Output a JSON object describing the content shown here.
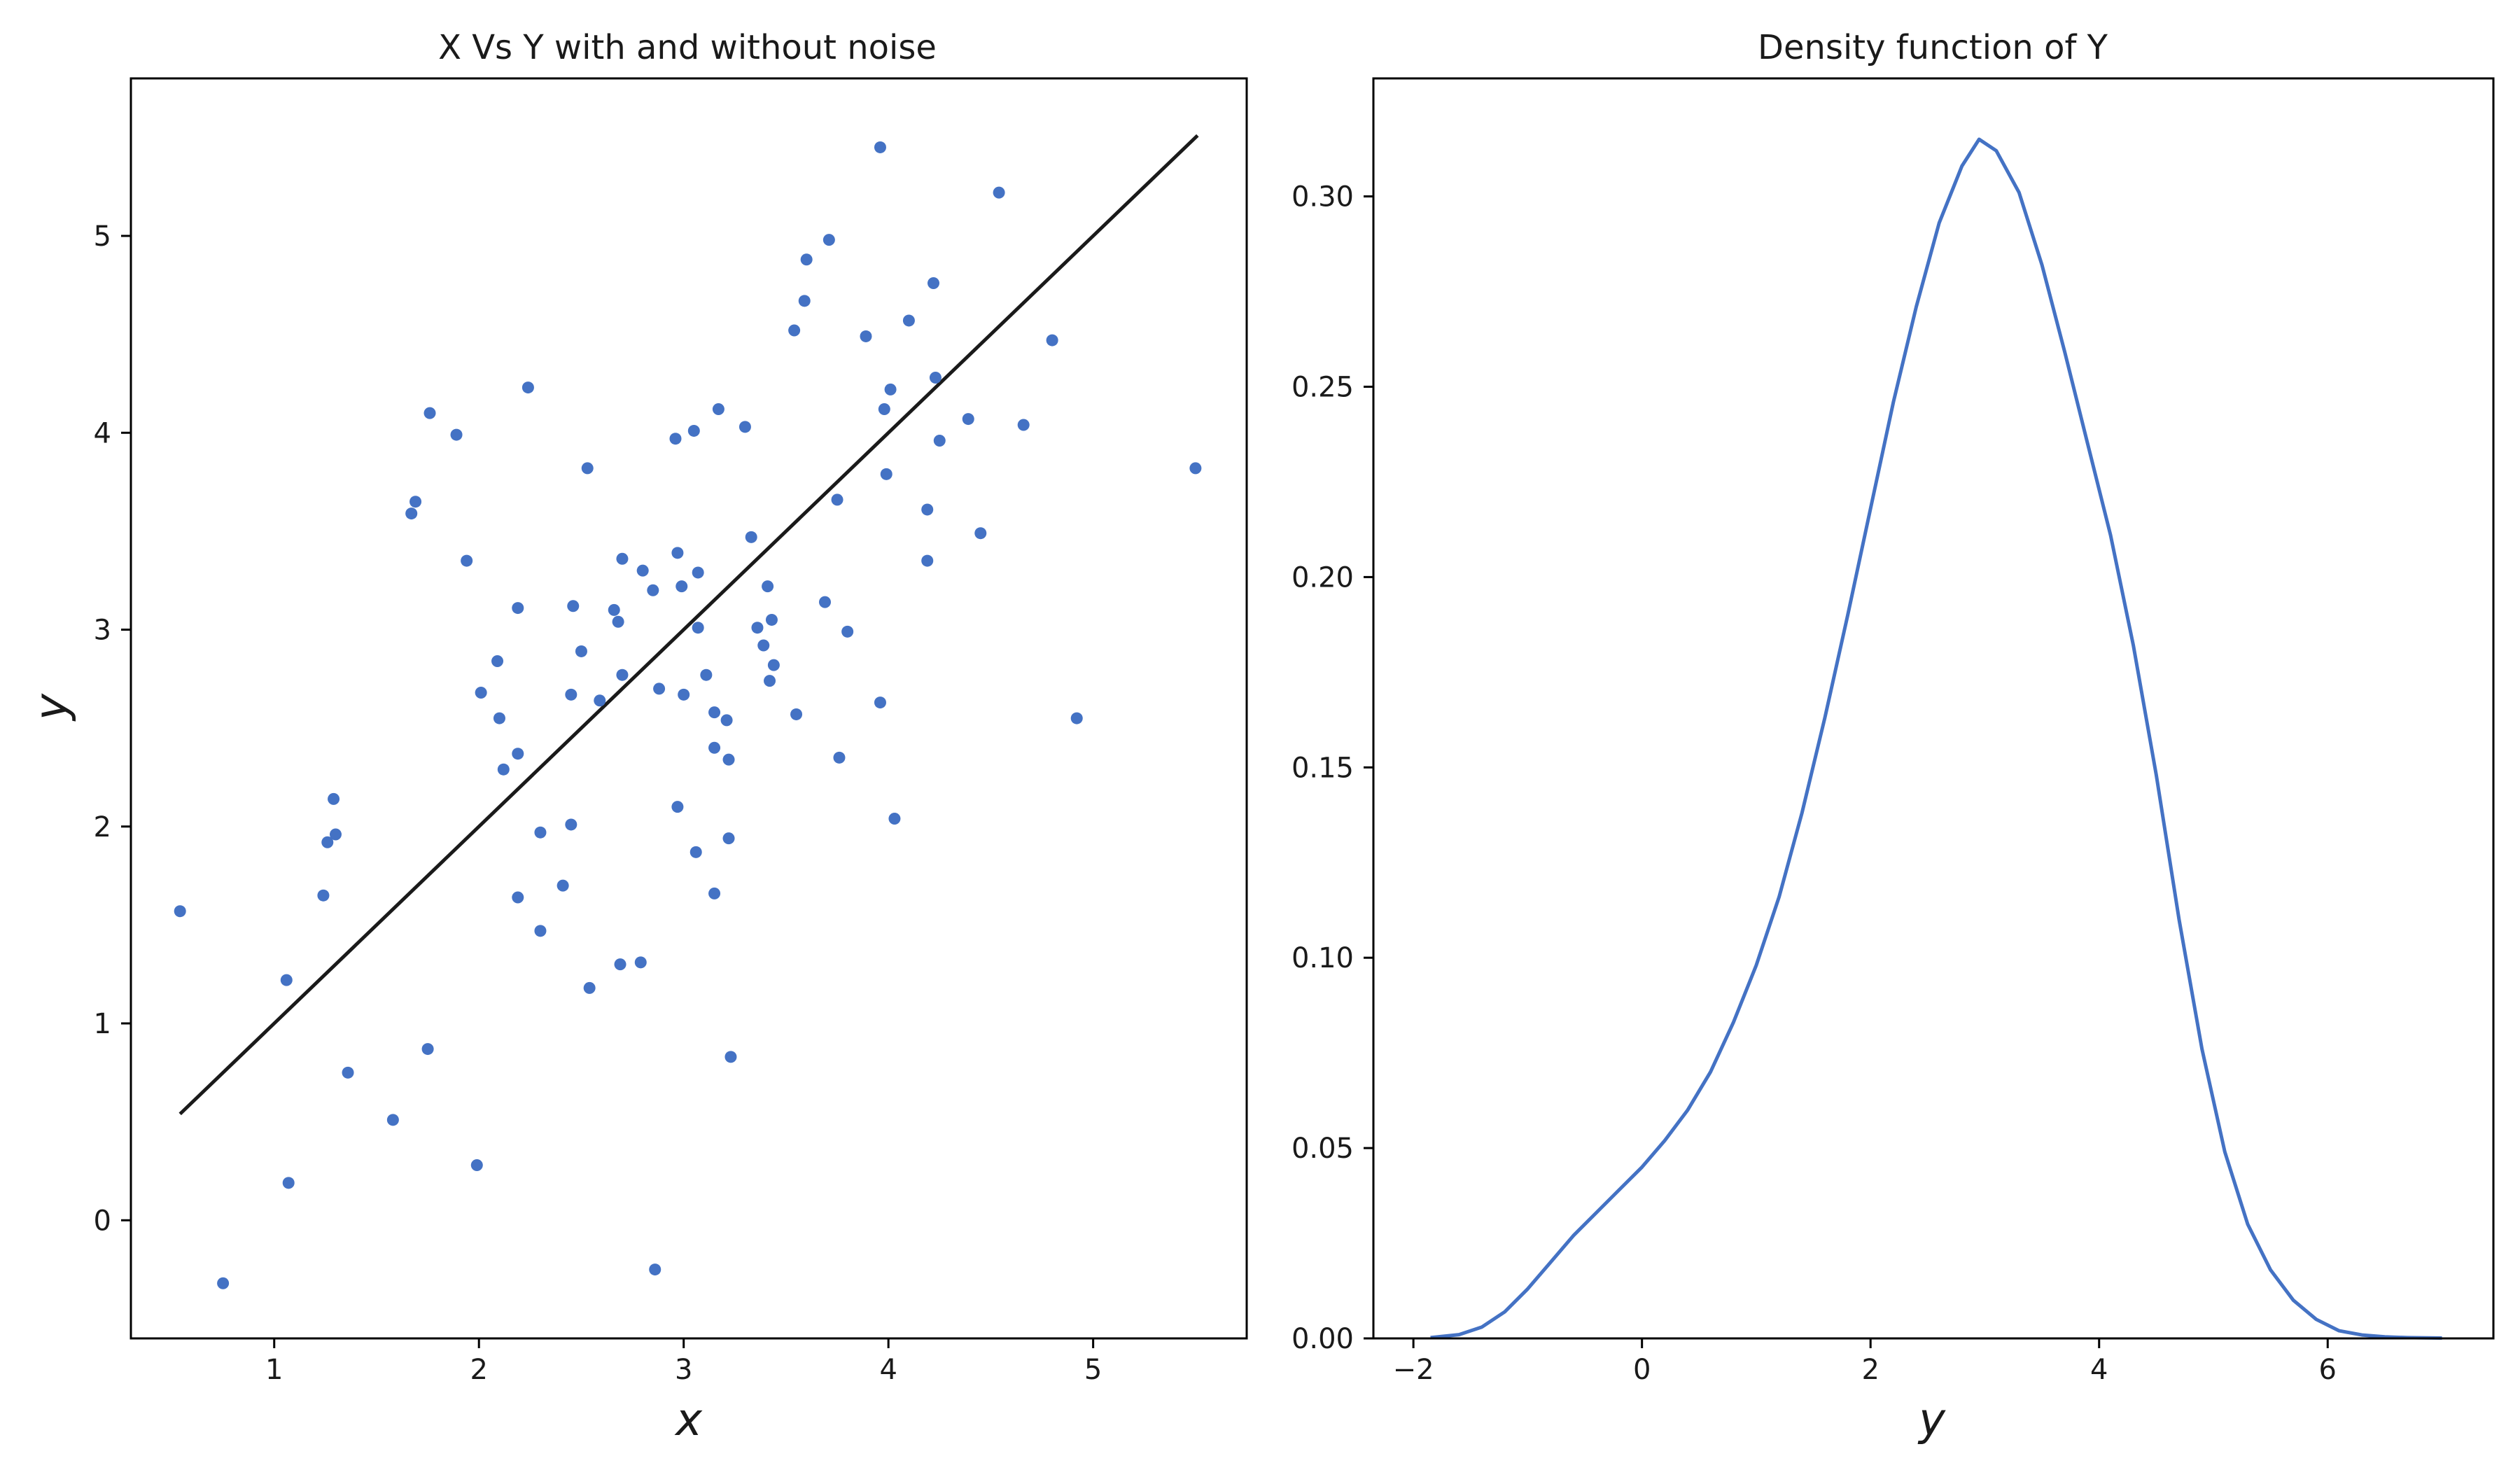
{
  "chart_data": [
    {
      "type": "scatter",
      "title": "X Vs Y with and without noise",
      "xlabel": "x",
      "ylabel": "y",
      "xlim": [
        0.3,
        5.75
      ],
      "ylim": [
        -0.6,
        5.8
      ],
      "xticks": [
        1,
        2,
        3,
        4,
        5
      ],
      "yticks": [
        0,
        1,
        2,
        3,
        4,
        5
      ],
      "grid": false,
      "colors": {
        "points": "#4472c4",
        "line": "#1a1a1a"
      },
      "series": [
        {
          "kind": "scatter",
          "points": [
            [
              0.54,
              1.57
            ],
            [
              0.75,
              -0.32
            ],
            [
              1.06,
              1.22
            ],
            [
              1.07,
              0.19
            ],
            [
              1.24,
              1.65
            ],
            [
              1.26,
              1.92
            ],
            [
              1.29,
              2.14
            ],
            [
              1.3,
              1.96
            ],
            [
              1.36,
              0.75
            ],
            [
              1.58,
              0.51
            ],
            [
              1.67,
              3.59
            ],
            [
              1.69,
              3.65
            ],
            [
              1.75,
              0.87
            ],
            [
              1.76,
              4.1
            ],
            [
              1.89,
              3.99
            ],
            [
              1.94,
              3.35
            ],
            [
              1.99,
              0.28
            ],
            [
              2.01,
              2.68
            ],
            [
              2.09,
              2.84
            ],
            [
              2.1,
              2.55
            ],
            [
              2.12,
              2.29
            ],
            [
              2.19,
              3.11
            ],
            [
              2.19,
              2.37
            ],
            [
              2.19,
              1.64
            ],
            [
              2.24,
              4.23
            ],
            [
              2.3,
              1.97
            ],
            [
              2.3,
              1.47
            ],
            [
              2.41,
              1.7
            ],
            [
              2.45,
              2.67
            ],
            [
              2.45,
              2.01
            ],
            [
              2.46,
              3.12
            ],
            [
              2.5,
              2.89
            ],
            [
              2.53,
              3.82
            ],
            [
              2.54,
              1.18
            ],
            [
              2.59,
              2.64
            ],
            [
              2.66,
              3.1
            ],
            [
              2.68,
              3.04
            ],
            [
              2.69,
              1.3
            ],
            [
              2.7,
              2.77
            ],
            [
              2.7,
              3.36
            ],
            [
              2.79,
              1.31
            ],
            [
              2.8,
              3.3
            ],
            [
              2.85,
              3.2
            ],
            [
              2.86,
              -0.25
            ],
            [
              2.88,
              2.7
            ],
            [
              2.96,
              3.97
            ],
            [
              2.97,
              3.39
            ],
            [
              2.97,
              2.1
            ],
            [
              2.99,
              3.22
            ],
            [
              3.0,
              2.67
            ],
            [
              3.05,
              4.01
            ],
            [
              3.06,
              1.87
            ],
            [
              3.07,
              3.29
            ],
            [
              3.07,
              3.01
            ],
            [
              3.11,
              2.77
            ],
            [
              3.15,
              2.58
            ],
            [
              3.15,
              2.4
            ],
            [
              3.15,
              1.66
            ],
            [
              3.17,
              4.12
            ],
            [
              3.21,
              2.54
            ],
            [
              3.22,
              2.34
            ],
            [
              3.22,
              1.94
            ],
            [
              3.23,
              0.83
            ],
            [
              3.3,
              4.03
            ],
            [
              3.33,
              3.47
            ],
            [
              3.36,
              3.01
            ],
            [
              3.39,
              2.92
            ],
            [
              3.41,
              3.22
            ],
            [
              3.42,
              2.74
            ],
            [
              3.43,
              3.05
            ],
            [
              3.44,
              2.82
            ],
            [
              3.54,
              4.52
            ],
            [
              3.55,
              2.57
            ],
            [
              3.59,
              4.67
            ],
            [
              3.6,
              4.88
            ],
            [
              3.69,
              3.14
            ],
            [
              3.71,
              4.98
            ],
            [
              3.75,
              3.66
            ],
            [
              3.76,
              2.35
            ],
            [
              3.8,
              2.99
            ],
            [
              3.89,
              4.49
            ],
            [
              3.96,
              5.45
            ],
            [
              3.96,
              2.63
            ],
            [
              3.98,
              4.12
            ],
            [
              3.99,
              3.79
            ],
            [
              4.01,
              4.22
            ],
            [
              4.03,
              2.04
            ],
            [
              4.1,
              4.57
            ],
            [
              4.19,
              3.61
            ],
            [
              4.19,
              3.35
            ],
            [
              4.22,
              4.76
            ],
            [
              4.23,
              4.28
            ],
            [
              4.25,
              3.96
            ],
            [
              4.39,
              4.07
            ],
            [
              4.45,
              3.49
            ],
            [
              4.54,
              5.22
            ],
            [
              4.66,
              4.04
            ],
            [
              4.8,
              4.47
            ],
            [
              4.92,
              2.55
            ],
            [
              5.5,
              3.82
            ]
          ]
        },
        {
          "kind": "line",
          "points": [
            [
              0.54,
              0.54
            ],
            [
              5.51,
              5.51
            ]
          ]
        }
      ]
    },
    {
      "type": "line",
      "title": "Density function of Y",
      "xlabel": "y",
      "ylabel": "",
      "xlim": [
        -2.35,
        7.45
      ],
      "ylim": [
        0,
        0.331
      ],
      "xticks": [
        -2,
        0,
        2,
        4,
        6
      ],
      "xtick_labels": [
        "−2",
        "0",
        "2",
        "4",
        "6"
      ],
      "yticks": [
        0.0,
        0.05,
        0.1,
        0.15,
        0.2,
        0.25,
        0.3
      ],
      "ytick_labels": [
        "0.00",
        "0.05",
        "0.10",
        "0.15",
        "0.20",
        "0.25",
        "0.30"
      ],
      "grid": false,
      "colors": {
        "line": "#4472c4"
      },
      "series": [
        {
          "x": [
            -1.85,
            -1.6,
            -1.4,
            -1.2,
            -1.0,
            -0.8,
            -0.6,
            -0.4,
            -0.2,
            0.0,
            0.2,
            0.4,
            0.6,
            0.8,
            1.0,
            1.2,
            1.4,
            1.6,
            1.8,
            2.0,
            2.2,
            2.4,
            2.6,
            2.8,
            2.95,
            3.1,
            3.3,
            3.5,
            3.7,
            3.9,
            4.1,
            4.3,
            4.5,
            4.7,
            4.9,
            5.1,
            5.3,
            5.5,
            5.7,
            5.9,
            6.1,
            6.3,
            6.5,
            6.7,
            7.0
          ],
          "values": [
            0.0002,
            0.001,
            0.003,
            0.007,
            0.013,
            0.02,
            0.027,
            0.033,
            0.039,
            0.045,
            0.052,
            0.06,
            0.07,
            0.083,
            0.098,
            0.116,
            0.138,
            0.163,
            0.19,
            0.218,
            0.246,
            0.271,
            0.293,
            0.308,
            0.315,
            0.312,
            0.301,
            0.282,
            0.259,
            0.235,
            0.211,
            0.182,
            0.148,
            0.11,
            0.076,
            0.049,
            0.03,
            0.018,
            0.01,
            0.005,
            0.002,
            0.0009,
            0.0004,
            0.0002,
            0.0001
          ]
        }
      ]
    }
  ]
}
